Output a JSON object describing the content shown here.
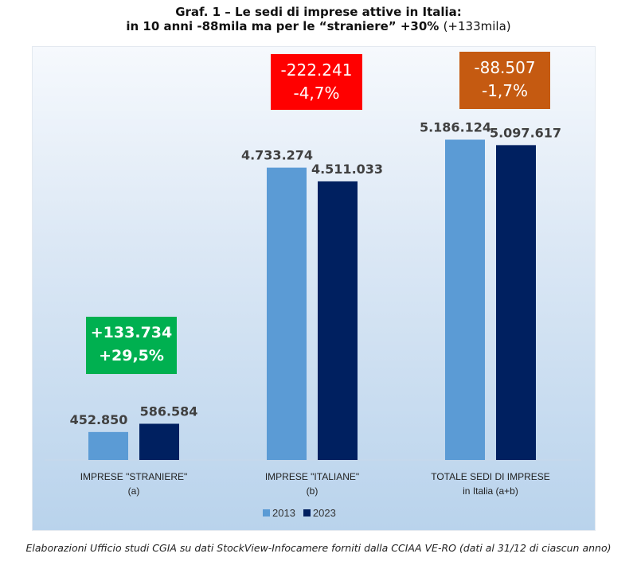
{
  "chart_data": {
    "type": "bar",
    "title": "Graf. 1 – Le sedi di imprese attive in Italia:",
    "subtitle_bold": "in 10 anni -88mila ma per le “straniere” +30%",
    "subtitle_normal": "(+133mila)",
    "categories": [
      {
        "line1": "IMPRESE \"STRANIERE\"",
        "line2": "(a)"
      },
      {
        "line1": "IMPRESE \"ITALIANE\"",
        "line2": "(b)"
      },
      {
        "line1": "TOTALE SEDI DI IMPRESE",
        "line2": "in Italia (a+b)"
      }
    ],
    "series": [
      {
        "name": "2013",
        "color": "#5b9bd5",
        "values": [
          452850,
          4733274,
          5186124
        ],
        "labels": [
          "452.850",
          "4.733.274",
          "5.186.124"
        ]
      },
      {
        "name": "2023",
        "color": "#002060",
        "values": [
          586584,
          4511033,
          5097617
        ],
        "labels": [
          "586.584",
          "4.511.033",
          "5.097.617"
        ]
      }
    ],
    "annotations": [
      {
        "line1": "+133.734",
        "line2": "+29,5%",
        "color": "#00b050"
      },
      {
        "line1": "-222.241",
        "line2": "-4,7%",
        "color": "#ff0000"
      },
      {
        "line1": "-88.507",
        "line2": "-1,7%",
        "color": "#c55a11"
      }
    ],
    "ylim": [
      0,
      6700000
    ],
    "grid": false,
    "legend": "bottom-center",
    "source": "Elaborazioni Ufficio studi CGIA su dati StockView-Infocamere forniti dalla CCIAA VE-RO (dati al 31/12 di ciascun anno)"
  }
}
